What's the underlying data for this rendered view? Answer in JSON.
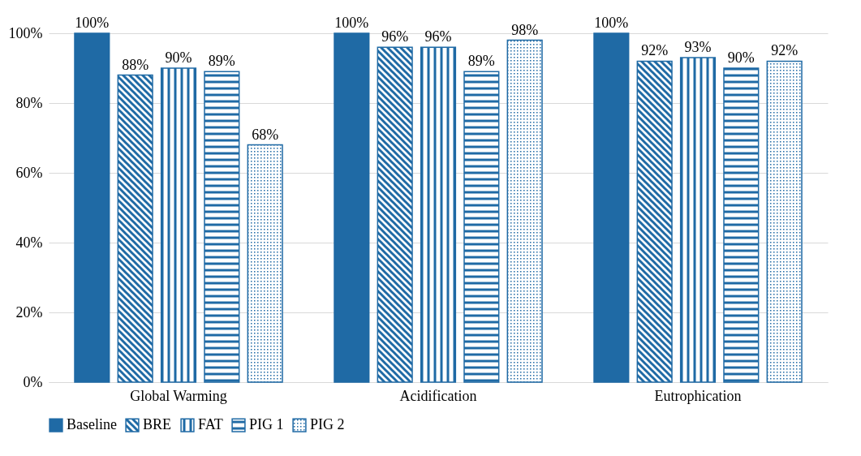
{
  "chart_data": {
    "type": "bar",
    "categories": [
      "Global Warming",
      "Acidification",
      "Eutrophication"
    ],
    "series": [
      {
        "name": "Baseline",
        "color": "#1f6aa5",
        "values": [
          100,
          100,
          100
        ],
        "value_labels": [
          "100%",
          "100%",
          "100%"
        ]
      },
      {
        "name": "BRE",
        "color": "#1f6aa5",
        "values": [
          88,
          96,
          92
        ],
        "value_labels": [
          "88%",
          "96%",
          "92%"
        ]
      },
      {
        "name": "FAT",
        "color": "#1f6aa5",
        "values": [
          90,
          96,
          93
        ],
        "value_labels": [
          "90%",
          "96%",
          "93%"
        ]
      },
      {
        "name": "PIG 1",
        "color": "#1f6aa5",
        "values": [
          89,
          89,
          90
        ],
        "value_labels": [
          "89%",
          "89%",
          "90%"
        ]
      },
      {
        "name": "PIG 2",
        "color": "#1f6aa5",
        "values": [
          68,
          98,
          92
        ],
        "value_labels": [
          "68%",
          "98%",
          "92%"
        ]
      }
    ],
    "ylim": [
      0,
      100
    ],
    "yticks": [
      {
        "value": 0,
        "label": "0%"
      },
      {
        "value": 20,
        "label": "20%"
      },
      {
        "value": 40,
        "label": "40%"
      },
      {
        "value": 60,
        "label": "60%"
      },
      {
        "value": 80,
        "label": "80%"
      },
      {
        "value": 100,
        "label": "100%"
      }
    ],
    "grid": "y",
    "legend": "bottom"
  }
}
